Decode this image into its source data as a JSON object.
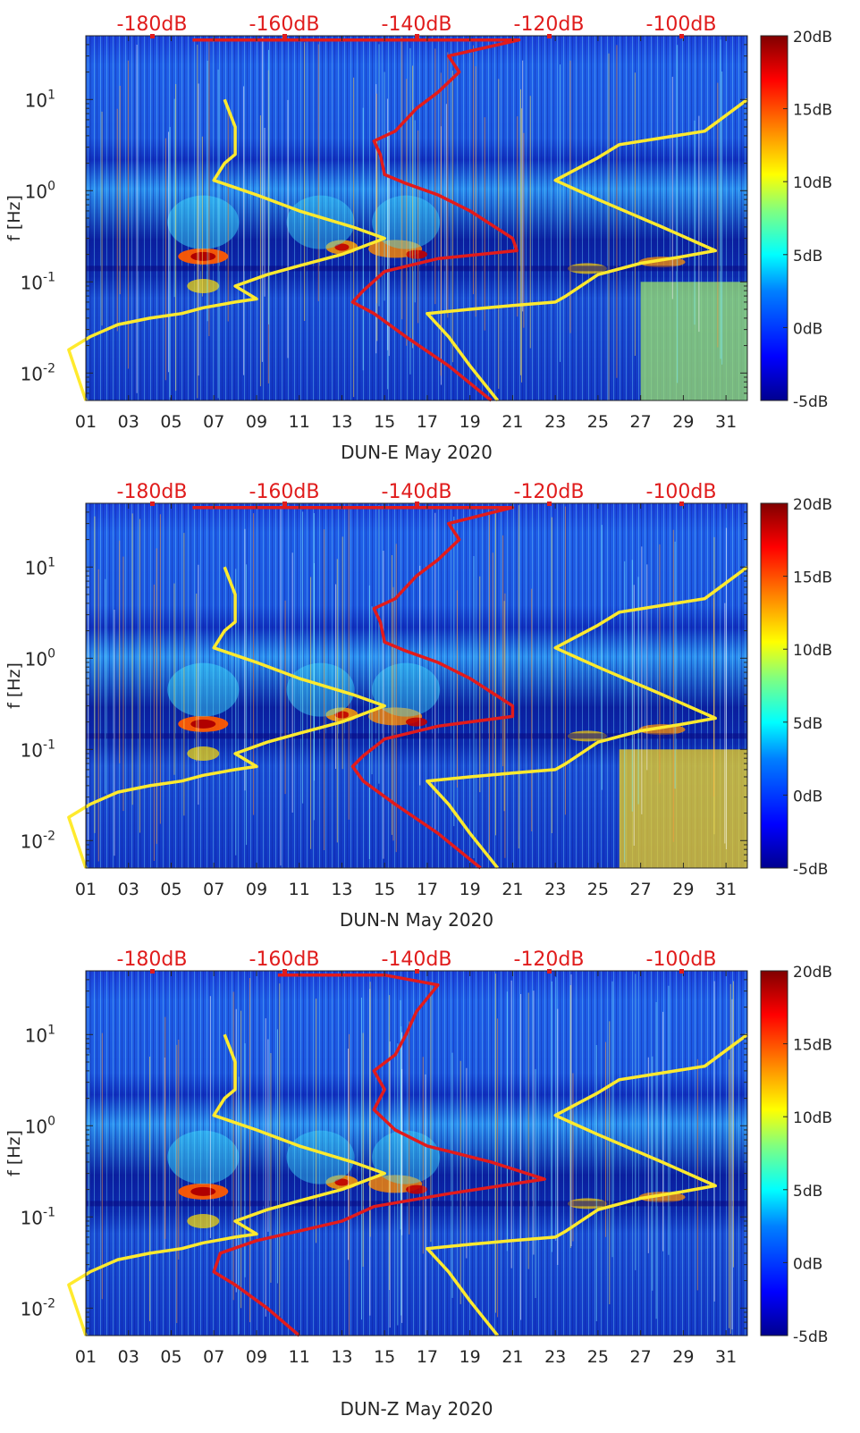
{
  "colors": {
    "yellow_curve": "#ffea2e",
    "red_curve": "#e21b1b",
    "top_label": "#e01c1c",
    "text": "#262626",
    "colormap": [
      "#00008f",
      "#0000ff",
      "#0080ff",
      "#00ffff",
      "#80ff80",
      "#ffff00",
      "#ff8000",
      "#ff0000",
      "#800000"
    ]
  },
  "chart_data": [
    {
      "type": "heatmap",
      "name": "DUN-E",
      "xlabel": "DUN-E May 2020",
      "ylabel": "f [Hz]",
      "xlim": [
        1,
        32
      ],
      "ylim_hz": [
        0.005,
        50
      ],
      "yscale": "log",
      "x_ticks": [
        "01",
        "03",
        "05",
        "07",
        "09",
        "11",
        "13",
        "15",
        "17",
        "19",
        "21",
        "23",
        "25",
        "27",
        "29",
        "31"
      ],
      "y_ticks": [
        {
          "value": 0.01,
          "exp": "-2"
        },
        {
          "value": 0.1,
          "exp": "-1"
        },
        {
          "value": 1,
          "exp": "0"
        },
        {
          "value": 10,
          "exp": "1"
        }
      ],
      "top_axis": {
        "range_db": [
          -190,
          -90
        ],
        "ticks": [
          "-180dB",
          "-160dB",
          "-140dB",
          "-120dB",
          "-100dB"
        ]
      },
      "colorbar": {
        "range_db": [
          -5,
          20
        ],
        "ticks": [
          "-5dB",
          "0dB",
          "5dB",
          "10dB",
          "15dB",
          "20dB"
        ]
      },
      "series": [
        {
          "name": "yellow",
          "day_freq": [
            [
              1,
              0.005
            ],
            [
              0.2,
              0.018
            ],
            [
              1.2,
              0.025
            ],
            [
              2.5,
              0.034
            ],
            [
              4,
              0.04
            ],
            [
              5.5,
              0.045
            ],
            [
              6.5,
              0.052
            ],
            [
              8,
              0.06
            ],
            [
              9,
              0.065
            ],
            [
              8,
              0.09
            ],
            [
              8,
              0.09
            ],
            [
              9.5,
              0.12
            ],
            [
              11,
              0.15
            ],
            [
              13,
              0.2
            ],
            [
              15,
              0.3
            ],
            [
              15,
              0.3
            ],
            [
              13.5,
              0.4
            ],
            [
              11,
              0.6
            ],
            [
              9,
              0.9
            ],
            [
              7,
              1.3
            ],
            [
              7.5,
              2
            ],
            [
              8,
              2.5
            ],
            [
              8,
              5
            ],
            [
              7.5,
              10
            ]
          ]
        },
        {
          "name": "yellow",
          "day_freq": [
            [
              20.3,
              0.005
            ],
            [
              19,
              0.012
            ],
            [
              18,
              0.025
            ],
            [
              17,
              0.045
            ],
            [
              19,
              0.05
            ],
            [
              21,
              0.055
            ],
            [
              23,
              0.06
            ],
            [
              23.5,
              0.07
            ],
            [
              25,
              0.12
            ],
            [
              27,
              0.16
            ],
            [
              29,
              0.19
            ],
            [
              30.5,
              0.22
            ],
            [
              28,
              0.4
            ],
            [
              25,
              0.8
            ],
            [
              23,
              1.3
            ],
            [
              25,
              2.3
            ],
            [
              26,
              3.2
            ],
            [
              30,
              4.5
            ],
            [
              32,
              10
            ]
          ]
        },
        {
          "name": "red",
          "day_freq": [
            [
              20,
              0.005
            ],
            [
              18,
              0.012
            ],
            [
              16,
              0.025
            ],
            [
              14.5,
              0.045
            ],
            [
              13.5,
              0.06
            ],
            [
              14,
              0.08
            ],
            [
              15,
              0.13
            ],
            [
              17.5,
              0.18
            ],
            [
              21.2,
              0.22
            ],
            [
              21,
              0.3
            ],
            [
              19,
              0.6
            ],
            [
              17.5,
              0.9
            ],
            [
              16,
              1.2
            ],
            [
              15,
              1.5
            ],
            [
              14.8,
              2.5
            ],
            [
              14.5,
              3.5
            ],
            [
              15.5,
              4.5
            ],
            [
              16.5,
              8
            ],
            [
              17.5,
              12
            ],
            [
              18.5,
              20
            ],
            [
              18,
              30
            ],
            [
              21.3,
              45
            ],
            [
              12,
              45
            ],
            [
              6,
              45
            ]
          ]
        }
      ]
    },
    {
      "type": "heatmap",
      "name": "DUN-N",
      "xlabel": "DUN-N May 2020",
      "ylabel": "f [Hz]",
      "xlim": [
        1,
        32
      ],
      "ylim_hz": [
        0.005,
        50
      ],
      "yscale": "log",
      "x_ticks": [
        "01",
        "03",
        "05",
        "07",
        "09",
        "11",
        "13",
        "15",
        "17",
        "19",
        "21",
        "23",
        "25",
        "27",
        "29",
        "31"
      ],
      "y_ticks": [
        {
          "value": 0.01,
          "exp": "-2"
        },
        {
          "value": 0.1,
          "exp": "-1"
        },
        {
          "value": 1,
          "exp": "0"
        },
        {
          "value": 10,
          "exp": "1"
        }
      ],
      "top_axis": {
        "range_db": [
          -190,
          -90
        ],
        "ticks": [
          "-180dB",
          "-160dB",
          "-140dB",
          "-120dB",
          "-100dB"
        ]
      },
      "colorbar": {
        "range_db": [
          -5,
          20
        ],
        "ticks": [
          "-5dB",
          "0dB",
          "5dB",
          "10dB",
          "15dB",
          "20dB"
        ]
      },
      "series": [
        {
          "name": "yellow",
          "day_freq": [
            [
              1,
              0.005
            ],
            [
              0.2,
              0.018
            ],
            [
              1.2,
              0.025
            ],
            [
              2.5,
              0.034
            ],
            [
              4,
              0.04
            ],
            [
              5.5,
              0.045
            ],
            [
              6.5,
              0.052
            ],
            [
              8,
              0.06
            ],
            [
              9,
              0.065
            ],
            [
              8,
              0.09
            ],
            [
              8,
              0.09
            ],
            [
              9.5,
              0.12
            ],
            [
              11,
              0.15
            ],
            [
              13,
              0.2
            ],
            [
              15,
              0.3
            ],
            [
              15,
              0.3
            ],
            [
              13.5,
              0.4
            ],
            [
              11,
              0.6
            ],
            [
              9,
              0.9
            ],
            [
              7,
              1.3
            ],
            [
              7.5,
              2
            ],
            [
              8,
              2.5
            ],
            [
              8,
              5
            ],
            [
              7.5,
              10
            ]
          ]
        },
        {
          "name": "yellow",
          "day_freq": [
            [
              20.3,
              0.005
            ],
            [
              19,
              0.012
            ],
            [
              18,
              0.025
            ],
            [
              17,
              0.045
            ],
            [
              19,
              0.05
            ],
            [
              21,
              0.055
            ],
            [
              23,
              0.06
            ],
            [
              23.5,
              0.07
            ],
            [
              25,
              0.12
            ],
            [
              27,
              0.16
            ],
            [
              29,
              0.19
            ],
            [
              30.5,
              0.22
            ],
            [
              28,
              0.4
            ],
            [
              25,
              0.8
            ],
            [
              23,
              1.3
            ],
            [
              25,
              2.3
            ],
            [
              26,
              3.2
            ],
            [
              30,
              4.5
            ],
            [
              32,
              10
            ]
          ]
        },
        {
          "name": "red",
          "day_freq": [
            [
              19.5,
              0.005
            ],
            [
              17.5,
              0.012
            ],
            [
              15.5,
              0.025
            ],
            [
              14,
              0.045
            ],
            [
              13.5,
              0.065
            ],
            [
              14,
              0.085
            ],
            [
              15,
              0.13
            ],
            [
              17.5,
              0.18
            ],
            [
              21,
              0.23
            ],
            [
              21,
              0.3
            ],
            [
              19,
              0.6
            ],
            [
              17.5,
              0.9
            ],
            [
              16,
              1.2
            ],
            [
              15,
              1.5
            ],
            [
              14.8,
              2.5
            ],
            [
              14.5,
              3.5
            ],
            [
              15.5,
              4.5
            ],
            [
              16.5,
              8
            ],
            [
              17.5,
              12
            ],
            [
              18.5,
              20
            ],
            [
              18,
              30
            ],
            [
              21,
              45
            ],
            [
              12,
              45
            ],
            [
              6,
              45
            ]
          ]
        }
      ]
    },
    {
      "type": "heatmap",
      "name": "DUN-Z",
      "xlabel": "DUN-Z May 2020",
      "ylabel": "f [Hz]",
      "xlim": [
        1,
        32
      ],
      "ylim_hz": [
        0.005,
        50
      ],
      "yscale": "log",
      "x_ticks": [
        "01",
        "03",
        "05",
        "07",
        "09",
        "11",
        "13",
        "15",
        "17",
        "19",
        "21",
        "23",
        "25",
        "27",
        "29",
        "31"
      ],
      "y_ticks": [
        {
          "value": 0.01,
          "exp": "-2"
        },
        {
          "value": 0.1,
          "exp": "-1"
        },
        {
          "value": 1,
          "exp": "0"
        },
        {
          "value": 10,
          "exp": "1"
        }
      ],
      "top_axis": {
        "range_db": [
          -190,
          -90
        ],
        "ticks": [
          "-180dB",
          "-160dB",
          "-140dB",
          "-120dB",
          "-100dB"
        ]
      },
      "colorbar": {
        "range_db": [
          -5,
          20
        ],
        "ticks": [
          "-5dB",
          "0dB",
          "5dB",
          "10dB",
          "15dB",
          "20dB"
        ]
      },
      "series": [
        {
          "name": "yellow",
          "day_freq": [
            [
              1,
              0.005
            ],
            [
              0.2,
              0.018
            ],
            [
              1.2,
              0.025
            ],
            [
              2.5,
              0.034
            ],
            [
              4,
              0.04
            ],
            [
              5.5,
              0.045
            ],
            [
              6.5,
              0.052
            ],
            [
              8,
              0.06
            ],
            [
              9,
              0.065
            ],
            [
              8,
              0.09
            ],
            [
              8,
              0.09
            ],
            [
              9.5,
              0.12
            ],
            [
              11,
              0.15
            ],
            [
              13,
              0.2
            ],
            [
              15,
              0.3
            ],
            [
              15,
              0.3
            ],
            [
              13.5,
              0.4
            ],
            [
              11,
              0.6
            ],
            [
              9,
              0.9
            ],
            [
              7,
              1.3
            ],
            [
              7.5,
              2
            ],
            [
              8,
              2.5
            ],
            [
              8,
              5
            ],
            [
              7.5,
              10
            ]
          ]
        },
        {
          "name": "yellow",
          "day_freq": [
            [
              20.3,
              0.005
            ],
            [
              19,
              0.012
            ],
            [
              18,
              0.025
            ],
            [
              17,
              0.045
            ],
            [
              19,
              0.05
            ],
            [
              21,
              0.055
            ],
            [
              23,
              0.06
            ],
            [
              23.5,
              0.07
            ],
            [
              25,
              0.12
            ],
            [
              27,
              0.16
            ],
            [
              29,
              0.19
            ],
            [
              30.5,
              0.22
            ],
            [
              28,
              0.4
            ],
            [
              25,
              0.8
            ],
            [
              23,
              1.3
            ],
            [
              25,
              2.3
            ],
            [
              26,
              3.2
            ],
            [
              30,
              4.5
            ],
            [
              32,
              10
            ]
          ]
        },
        {
          "name": "red",
          "day_freq": [
            [
              11,
              0.005
            ],
            [
              9.5,
              0.01
            ],
            [
              8,
              0.018
            ],
            [
              7,
              0.025
            ],
            [
              7.3,
              0.04
            ],
            [
              9,
              0.055
            ],
            [
              11,
              0.07
            ],
            [
              13,
              0.09
            ],
            [
              14.5,
              0.13
            ],
            [
              18,
              0.18
            ],
            [
              22.5,
              0.26
            ],
            [
              20,
              0.4
            ],
            [
              17,
              0.6
            ],
            [
              15.5,
              0.9
            ],
            [
              14.5,
              1.5
            ],
            [
              15,
              2.5
            ],
            [
              14.5,
              4
            ],
            [
              15.5,
              6
            ],
            [
              16,
              10
            ],
            [
              16.5,
              18
            ],
            [
              17.5,
              35
            ],
            [
              15,
              45
            ],
            [
              10,
              45
            ]
          ]
        }
      ]
    }
  ]
}
